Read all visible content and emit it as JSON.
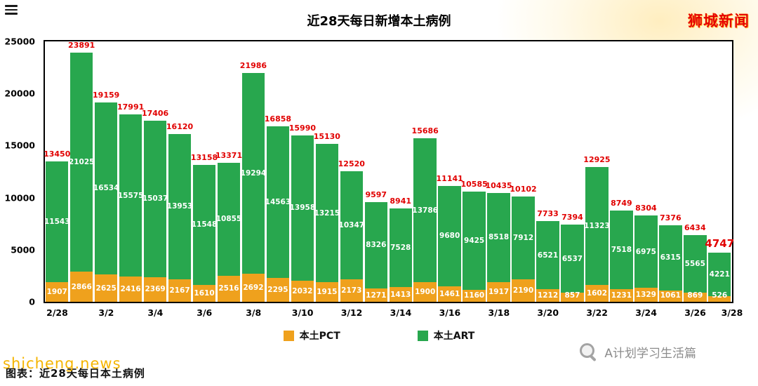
{
  "header": {
    "title": "近28天每日新增本土病例",
    "logo": "狮城新闻"
  },
  "legend": {
    "pct_label": "本土PCT",
    "art_label": "本土ART"
  },
  "footer": {
    "caption": "图表：近28天每日本土病例",
    "watermark": "shicheng.news",
    "credit": "A计划学习生活篇"
  },
  "colors": {
    "art_green": "#28a74e",
    "pct_orange": "#efa11d",
    "total_red": "#e10000"
  },
  "chart_data": {
    "type": "bar",
    "stacked": true,
    "title": "近28天每日新增本土病例",
    "grid": false,
    "legend_position": "bottom",
    "ylim": [
      0,
      25000
    ],
    "yticks": [
      0,
      5000,
      10000,
      15000,
      20000,
      25000
    ],
    "x_tick_labels": [
      "2/28",
      "3/2",
      "3/4",
      "3/6",
      "3/8",
      "3/10",
      "3/12",
      "3/14",
      "3/16",
      "3/18",
      "3/20",
      "3/22",
      "3/24",
      "3/26",
      "3/28"
    ],
    "series": [
      {
        "name": "本土PCT",
        "color": "#efa11d",
        "values": [
          1907,
          2866,
          2625,
          2416,
          2369,
          2167,
          1610,
          2516,
          2692,
          2295,
          2032,
          1915,
          2173,
          1271,
          1413,
          1900,
          1461,
          1160,
          1917,
          2190,
          1212,
          857,
          1602,
          1231,
          1329,
          1061,
          869,
          526
        ]
      },
      {
        "name": "本土ART",
        "color": "#28a74e",
        "values": [
          11543,
          21025,
          16534,
          15575,
          15037,
          13953,
          11548,
          10855,
          19294,
          14563,
          13958,
          13215,
          10347,
          8326,
          7528,
          13786,
          9680,
          9425,
          8518,
          7912,
          6521,
          6537,
          11323,
          7518,
          6975,
          6315,
          5565,
          4221
        ]
      }
    ],
    "totals": [
      13450,
      23891,
      19159,
      17991,
      17406,
      16120,
      13158,
      13371,
      21986,
      16858,
      15990,
      15130,
      12520,
      9597,
      8941,
      15686,
      11141,
      10585,
      10435,
      10102,
      7733,
      7394,
      12925,
      8749,
      8304,
      7376,
      6434,
      4747
    ]
  }
}
